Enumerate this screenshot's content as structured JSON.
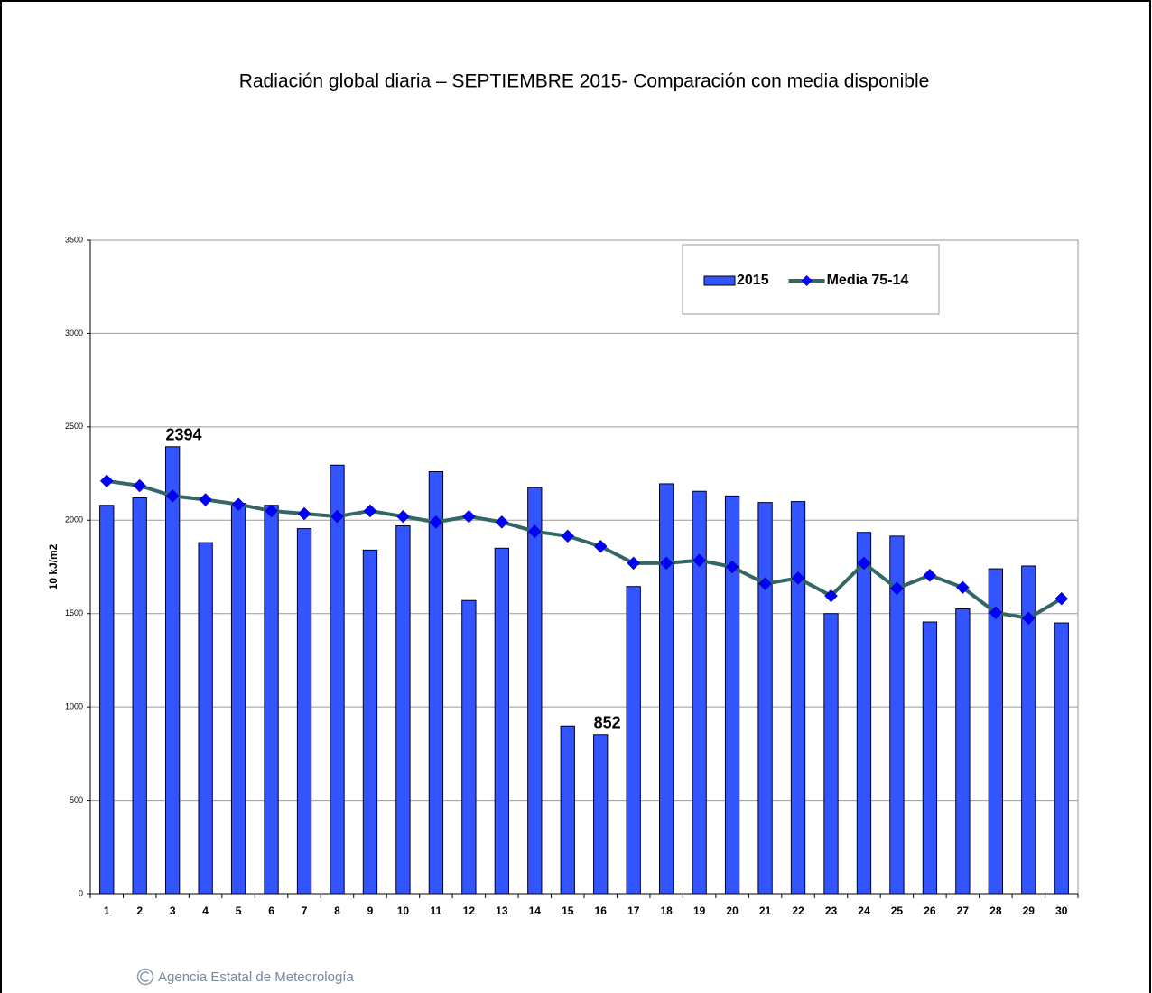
{
  "chart_data": {
    "type": "bar_line",
    "title": "Radiación global diaria –  SEPTIEMBRE 2015- Comparación con media disponible",
    "y_label": "10 kJ/m2",
    "source": "Agencia Estatal de Meteorología",
    "categories": [
      "1",
      "2",
      "3",
      "4",
      "5",
      "6",
      "7",
      "8",
      "9",
      "10",
      "11",
      "12",
      "13",
      "14",
      "15",
      "16",
      "17",
      "18",
      "19",
      "20",
      "21",
      "22",
      "23",
      "24",
      "25",
      "26",
      "27",
      "28",
      "29",
      "30"
    ],
    "series": [
      {
        "name": "2015",
        "type": "bar",
        "color": "#3355ff",
        "values": [
          2080,
          2120,
          2394,
          1880,
          2090,
          2080,
          1955,
          2295,
          1840,
          1970,
          2260,
          1570,
          1850,
          2175,
          898,
          852,
          1645,
          2195,
          2155,
          2130,
          2095,
          2100,
          1500,
          1935,
          1915,
          1455,
          1525,
          1740,
          1755,
          1450
        ],
        "value_labels": [
          null,
          null,
          "2394",
          null,
          null,
          null,
          null,
          null,
          null,
          null,
          null,
          null,
          null,
          null,
          null,
          "852",
          null,
          null,
          null,
          null,
          null,
          null,
          null,
          null,
          null,
          null,
          null,
          null,
          null,
          null
        ]
      },
      {
        "name": "Media 75-14",
        "type": "line",
        "color": "#336666",
        "marker_color": "#0000ff",
        "values": [
          2210,
          2185,
          2130,
          2110,
          2085,
          2050,
          2035,
          2020,
          2050,
          2020,
          1990,
          2020,
          1990,
          1940,
          1915,
          1860,
          1770,
          1770,
          1785,
          1750,
          1660,
          1690,
          1595,
          1770,
          1635,
          1705,
          1640,
          1505,
          1475,
          1580
        ]
      }
    ],
    "ylim": [
      0,
      3500
    ],
    "yticks": [
      0,
      500,
      1000,
      1500,
      2000,
      2500,
      3000,
      3500
    ],
    "grid": true,
    "legend": "top-right"
  }
}
